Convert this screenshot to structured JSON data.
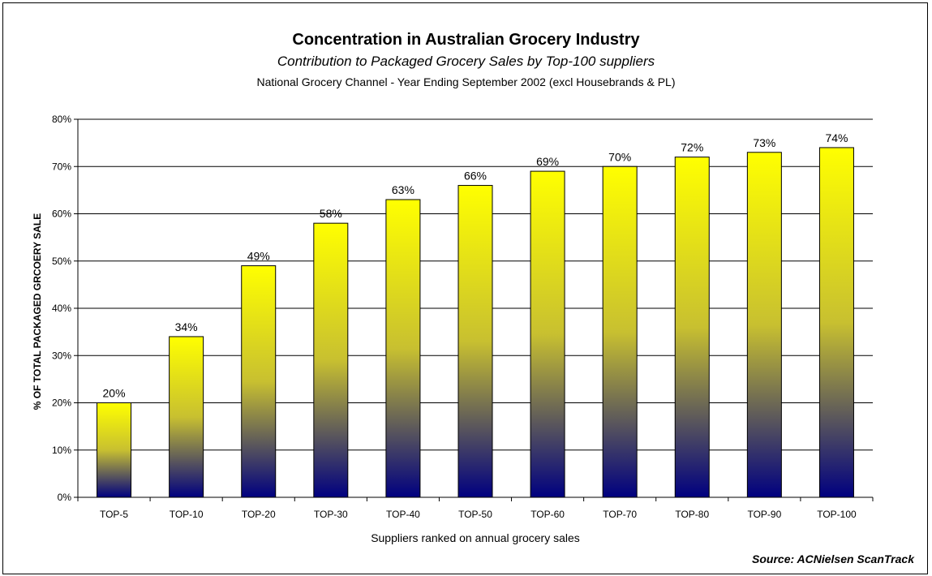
{
  "chart_data": {
    "type": "bar",
    "title": "Concentration in Australian Grocery Industry",
    "subtitle": "Contribution to Packaged Grocery Sales by Top-100 suppliers",
    "subtitle2": "National Grocery Channel - Year Ending September 2002 (excl Housebrands & PL)",
    "xlabel": "Suppliers ranked on annual grocery sales",
    "ylabel": "% OF TOTAL PACKAGED GRCOERY SALE",
    "categories": [
      "TOP-5",
      "TOP-10",
      "TOP-20",
      "TOP-30",
      "TOP-40",
      "TOP-50",
      "TOP-60",
      "TOP-70",
      "TOP-80",
      "TOP-90",
      "TOP-100"
    ],
    "values": [
      20,
      34,
      49,
      58,
      63,
      66,
      69,
      70,
      72,
      73,
      74
    ],
    "data_labels": [
      "20%",
      "34%",
      "49%",
      "58%",
      "63%",
      "66%",
      "69%",
      "70%",
      "72%",
      "73%",
      "74%"
    ],
    "ylim": [
      0,
      80
    ],
    "yticks": [
      0,
      10,
      20,
      30,
      40,
      50,
      60,
      70,
      80
    ],
    "ytick_labels": [
      "0%",
      "10%",
      "20%",
      "30%",
      "40%",
      "50%",
      "60%",
      "70%",
      "80%"
    ],
    "grid": true,
    "legend": "none",
    "colors": {
      "bar_top": "#ffff00",
      "bar_mid": "#c8c030",
      "bar_bottom": "#000080"
    }
  },
  "source": "Source: ACNielsen ScanTrack"
}
